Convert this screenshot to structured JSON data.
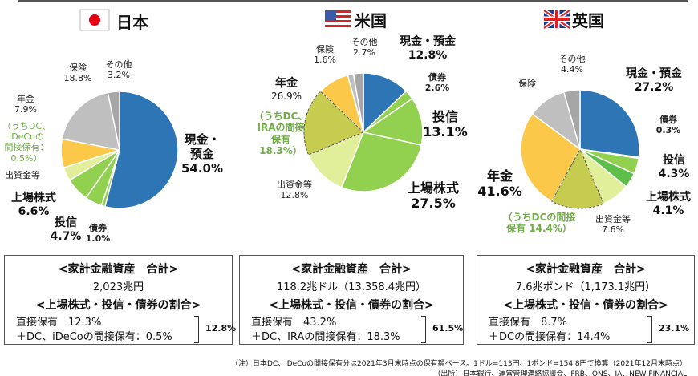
{
  "chart_data": [
    {
      "type": "pie",
      "title": "日本",
      "flag": "japan-flag",
      "slices": [
        {
          "label": "現金・預金",
          "value": 54.0,
          "color": "#2e75b6"
        },
        {
          "label": "債券",
          "value": 1.0,
          "color": "#92d050"
        },
        {
          "label": "投信",
          "value": 4.7,
          "color": "#92d050"
        },
        {
          "label": "上場株式",
          "value": 6.6,
          "color": "#92d050"
        },
        {
          "label": "出資金等",
          "value": 3.8,
          "color": "#e2ef9a"
        },
        {
          "label": "年金",
          "value": 7.9,
          "color": "#fcc84a"
        },
        {
          "label": "保険",
          "value": 18.8,
          "color": "#bfbfbf"
        },
        {
          "label": "その他",
          "value": 3.2,
          "color": "#a6a6a6"
        }
      ],
      "labels": {
        "cash": "現金・",
        "cash2": "預金",
        "cash_v": "54.0%",
        "bond": "債券",
        "bond_v": "1.0%",
        "fund": "投信",
        "fund_v": "4.7%",
        "stock": "上場株式",
        "stock_v": "6.6%",
        "invest": "出資金等",
        "pension": "年金",
        "pension_v": "7.9%",
        "dc": [
          "（うちDC、",
          "iDeCoの",
          "間接保有：",
          "0.5%）"
        ],
        "ins": "保険",
        "ins_v": "18.8%",
        "other": "その他",
        "other_v": "3.2%"
      }
    },
    {
      "type": "pie",
      "title": "米国",
      "flag": "us-flag",
      "slices": [
        {
          "label": "現金・預金",
          "value": 12.8,
          "color": "#2e75b6"
        },
        {
          "label": "債券",
          "value": 2.6,
          "color": "#92d050"
        },
        {
          "label": "投信",
          "value": 13.1,
          "color": "#92d050"
        },
        {
          "label": "上場株式",
          "value": 27.5,
          "color": "#92d050"
        },
        {
          "label": "出資金等",
          "value": 12.8,
          "color": "#e2ef9a"
        },
        {
          "label": "年金",
          "value": 26.9,
          "dc": 18.3,
          "color": "#fcc84a",
          "dc_color": "#c5cc50"
        },
        {
          "label": "保険",
          "value": 1.6,
          "color": "#bfbfbf"
        },
        {
          "label": "その他",
          "value": 2.7,
          "color": "#a6a6a6"
        }
      ],
      "labels": {
        "cash": "現金・預金",
        "cash_v": "12.8%",
        "bond": "債券",
        "bond_v": "2.6%",
        "fund": "投信",
        "fund_v": "13.1%",
        "stock": "上場株式",
        "stock_v": "27.5%",
        "invest": "出資金等",
        "invest_v": "12.8%",
        "pension": "年金",
        "pension_v": "26.9%",
        "dc": [
          "（うちDC、",
          "IRAの間接",
          "保有",
          "18.3%）"
        ],
        "ins": "保険",
        "ins_v": "1.6%",
        "other": "その他",
        "other_v": "2.7%"
      }
    },
    {
      "type": "pie",
      "title": "英国",
      "flag": "uk-flag",
      "slices": [
        {
          "label": "現金・預金",
          "value": 27.2,
          "color": "#2e75b6"
        },
        {
          "label": "債券",
          "value": 0.3,
          "color": "#92d050"
        },
        {
          "label": "投信",
          "value": 4.3,
          "color": "#92d050"
        },
        {
          "label": "上場株式",
          "value": 4.1,
          "color": "#5dbf4a"
        },
        {
          "label": "出資金等",
          "value": 7.6,
          "color": "#e2ef9a"
        },
        {
          "label": "年金",
          "value": 41.6,
          "dc": 14.4,
          "color": "#fcc84a",
          "dc_color": "#c5cc50"
        },
        {
          "label": "保険",
          "value": 10.5,
          "color": "#bfbfbf"
        },
        {
          "label": "その他",
          "value": 4.4,
          "color": "#a6a6a6"
        }
      ],
      "labels": {
        "cash": "現金・預金",
        "cash_v": "27.2%",
        "bond": "債券",
        "bond_v": "0.3%",
        "fund": "投信",
        "fund_v": "4.3%",
        "stock": "上場株式",
        "stock_v": "4.1%",
        "invest": "出資金等",
        "invest_v": "7.6%",
        "pension": "年金",
        "pension_v": "41.6%",
        "dc": [
          "（うちDCの間接",
          "保有 14.4%）"
        ],
        "ins": "保険",
        "other": "その他",
        "other_v": "4.4%"
      }
    }
  ],
  "boxes": [
    {
      "h1": "<家計金融資産　合計>",
      "total": "2,023兆円",
      "h2": "<上場株式・投信・債券の割合>",
      "direct": "直接保有　12.3%",
      "indirect": "＋DC、iDeCoの間接保有：0.5%",
      "sum": "12.8%"
    },
    {
      "h1": "<家計金融資産　合計>",
      "total": "118.2兆ドル（13,358.4兆円）",
      "h2": "<上場株式・投信・債券の割合>",
      "direct": "直接保有　43.2%",
      "indirect": "＋DC、IRAの間接保有：18.3%",
      "sum": "61.5%"
    },
    {
      "h1": "<家計金融資産　合計>",
      "total": "7.6兆ポンド（1,173.1兆円）",
      "h2": "<上場株式・投信・債券の割合>",
      "direct": "直接保有　8.7%",
      "indirect": "＋DCの間接保有：14.4%",
      "sum": "23.1%"
    }
  ],
  "notes": {
    "note": "（注）日本DC、iDeCoの間接保有分は2021年3月末時点の保有額ベース。1ドル=113円、1ポンド=154.8円で換算（2021年12月末時点）",
    "source": "（出所）日本銀行、運営管理連絡協議会、FRB、ONS、IA、NEW FINANCIAL"
  }
}
